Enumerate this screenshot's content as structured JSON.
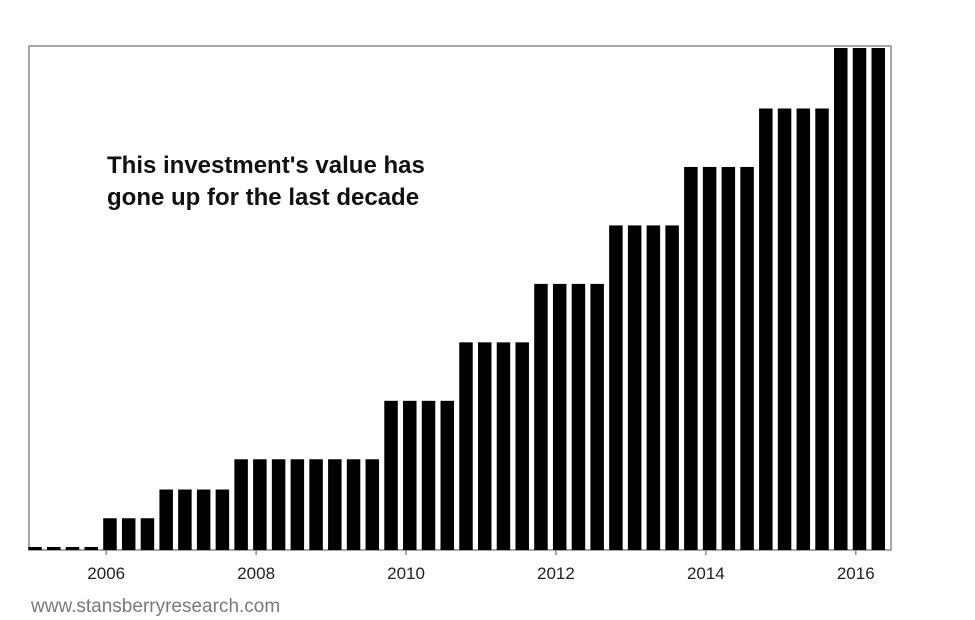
{
  "chart_data": {
    "type": "bar",
    "title": "",
    "xlabel": "",
    "ylabel": "",
    "annotation_lines": [
      "This investment's value has",
      "gone up for the last decade"
    ],
    "source": "www.stansberryresearch.com",
    "x_tick_labels": [
      "2006",
      "2008",
      "2010",
      "2012",
      "2014",
      "2016"
    ],
    "x_range": [
      2004.97,
      2016.47
    ],
    "ylim": [
      0,
      100
    ],
    "y_axis_shown": false,
    "grid": false,
    "legend": "none",
    "bar_color": "#000000",
    "x": [
      2005.05,
      2005.3,
      2005.55,
      2005.8,
      2006.05,
      2006.3,
      2006.55,
      2006.8,
      2007.05,
      2007.3,
      2007.55,
      2007.8,
      2008.05,
      2008.3,
      2008.55,
      2008.8,
      2009.05,
      2009.3,
      2009.55,
      2009.8,
      2010.05,
      2010.3,
      2010.55,
      2010.8,
      2011.05,
      2011.3,
      2011.55,
      2011.8,
      2012.05,
      2012.3,
      2012.55,
      2012.8,
      2013.05,
      2013.3,
      2013.55,
      2013.8,
      2014.05,
      2014.3,
      2014.55,
      2014.8,
      2015.05,
      2015.3,
      2015.55,
      2015.8,
      2016.05,
      2016.3
    ],
    "values": [
      0.6,
      0.6,
      0.6,
      0.6,
      6.3,
      6.3,
      6.3,
      12,
      12,
      12,
      12,
      18,
      18,
      18,
      18,
      18,
      18,
      18,
      18,
      29.6,
      29.6,
      29.6,
      29.6,
      41.2,
      41.2,
      41.2,
      41.2,
      52.8,
      52.8,
      52.8,
      52.8,
      64.4,
      64.4,
      64.4,
      64.4,
      76,
      76,
      76,
      76,
      87.6,
      87.6,
      87.6,
      87.6,
      99.6,
      99.6,
      99.6
    ]
  }
}
